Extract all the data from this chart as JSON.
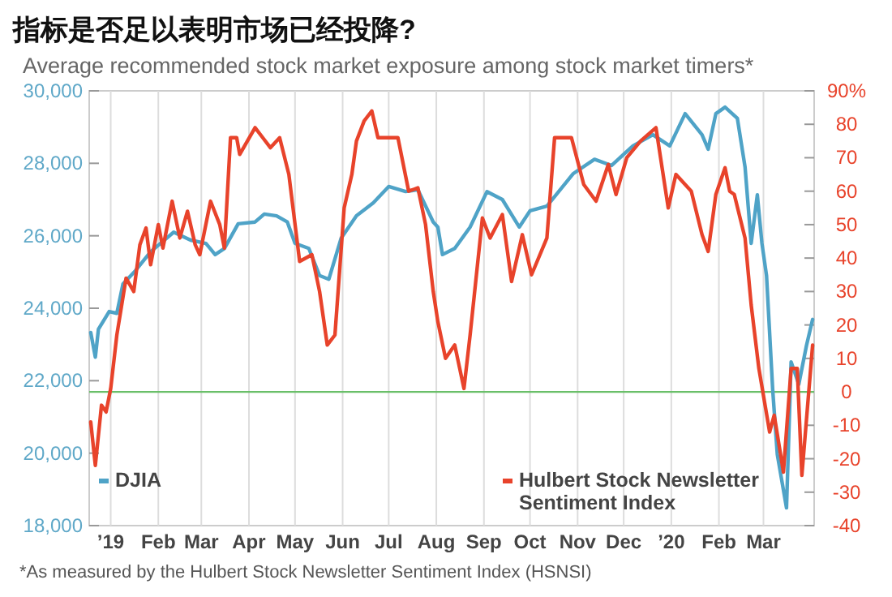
{
  "chart_data": {
    "type": "line",
    "title": "指标是否足以表明市场已经投降?",
    "subtitle": "Average recommended stock market exposure among stock market timers*",
    "annotations": [
      "*As measured by the Hulbert Stock Newsletter Sentiment Index (HSNSI)"
    ],
    "xlim": [
      "2019-01-01",
      "2020-04-17"
    ],
    "xticks": [
      {
        "value": "2019-01-15",
        "label": "’19"
      },
      {
        "value": "2019-02-15",
        "label": "Feb"
      },
      {
        "value": "2019-03-15",
        "label": "Mar"
      },
      {
        "value": "2019-04-15",
        "label": "Apr"
      },
      {
        "value": "2019-05-15",
        "label": "May"
      },
      {
        "value": "2019-06-15",
        "label": "Jun"
      },
      {
        "value": "2019-07-15",
        "label": "Jul"
      },
      {
        "value": "2019-08-15",
        "label": "Aug"
      },
      {
        "value": "2019-09-15",
        "label": "Sep"
      },
      {
        "value": "2019-10-15",
        "label": "Oct"
      },
      {
        "value": "2019-11-15",
        "label": "Nov"
      },
      {
        "value": "2019-12-15",
        "label": "Dec"
      },
      {
        "value": "2020-01-15",
        "label": "’20"
      },
      {
        "value": "2020-02-15",
        "label": "Feb"
      },
      {
        "value": "2020-03-15",
        "label": "Mar"
      }
    ],
    "ylim": [
      18000,
      30000
    ],
    "yticks": [
      {
        "value": 18000,
        "label": "18,000"
      },
      {
        "value": 20000,
        "label": "20,000"
      },
      {
        "value": 22000,
        "label": "22,000"
      },
      {
        "value": 24000,
        "label": "24,000"
      },
      {
        "value": 26000,
        "label": "26,000"
      },
      {
        "value": 28000,
        "label": "28,000"
      },
      {
        "value": 30000,
        "label": "30,000"
      }
    ],
    "y2lim": [
      -40,
      90
    ],
    "y2ticks": [
      -40,
      -30,
      -20,
      -10,
      0,
      10,
      20,
      30,
      40,
      50,
      60,
      70,
      80,
      {
        "value": 90,
        "label": "90%"
      }
    ],
    "grid": "x",
    "legend": "bottom",
    "line_style": "solid",
    "ref_lines": [
      {
        "axis": "y2",
        "value": 0,
        "color": "#6abf69"
      }
    ],
    "series": [
      {
        "name": "DJIA",
        "color": "#4fa3c7",
        "x": [
          "2019-01-02",
          "2019-01-05",
          "2019-01-07",
          "2019-01-14",
          "2019-01-19",
          "2019-01-23",
          "2019-01-31",
          "2019-02-10",
          "2019-02-25",
          "2019-03-08",
          "2019-03-18",
          "2019-03-24",
          "2019-03-30",
          "2019-04-08",
          "2019-04-19",
          "2019-04-25",
          "2019-05-03",
          "2019-05-10",
          "2019-05-15",
          "2019-05-24",
          "2019-05-31",
          "2019-06-06",
          "2019-06-14",
          "2019-06-24",
          "2019-07-05",
          "2019-07-15",
          "2019-07-26",
          "2019-08-03",
          "2019-08-13",
          "2019-08-16",
          "2019-08-19",
          "2019-08-27",
          "2019-09-06",
          "2019-09-17",
          "2019-09-27",
          "2019-10-08",
          "2019-10-15",
          "2019-10-26",
          "2019-11-01",
          "2019-11-12",
          "2019-11-26",
          "2019-12-07",
          "2019-12-21",
          "2020-01-03",
          "2020-01-14",
          "2020-01-24",
          "2020-02-04",
          "2020-02-08",
          "2020-02-13",
          "2020-02-19",
          "2020-02-27",
          "2020-03-03",
          "2020-03-07",
          "2020-03-11",
          "2020-03-14",
          "2020-03-17",
          "2020-03-21",
          "2020-03-24",
          "2020-03-30",
          "2020-04-02",
          "2020-04-07",
          "2020-04-12",
          "2020-04-16"
        ],
        "values": [
          23330,
          22650,
          23420,
          23910,
          23860,
          24670,
          25030,
          25560,
          26100,
          25880,
          25790,
          25480,
          25650,
          26330,
          26380,
          26600,
          26550,
          26380,
          25790,
          25650,
          24900,
          24800,
          25930,
          26550,
          26910,
          27360,
          27220,
          27270,
          26380,
          26240,
          25480,
          25650,
          26240,
          27220,
          27000,
          26240,
          26690,
          26820,
          27130,
          27710,
          28110,
          27940,
          28480,
          28790,
          28480,
          29370,
          28790,
          28390,
          29370,
          29550,
          29240,
          27900,
          25790,
          27130,
          25790,
          24900,
          21760,
          19970,
          18490,
          22520,
          21900,
          22970,
          23690
        ]
      },
      {
        "name": "Hulbert Stock Newsletter Sentiment Index",
        "color": "#e8432b",
        "axis": "y2",
        "x": [
          "2019-01-02",
          "2019-01-05",
          "2019-01-09",
          "2019-01-12",
          "2019-01-15",
          "2019-01-19",
          "2019-01-25",
          "2019-01-30",
          "2019-02-03",
          "2019-02-07",
          "2019-02-10",
          "2019-02-15",
          "2019-02-18",
          "2019-02-24",
          "2019-03-01",
          "2019-03-06",
          "2019-03-11",
          "2019-03-14",
          "2019-03-21",
          "2019-03-27",
          "2019-03-30",
          "2019-04-03",
          "2019-04-07",
          "2019-04-09",
          "2019-04-19",
          "2019-04-24",
          "2019-04-29",
          "2019-05-05",
          "2019-05-11",
          "2019-05-18",
          "2019-05-26",
          "2019-05-31",
          "2019-06-05",
          "2019-06-10",
          "2019-06-16",
          "2019-06-21",
          "2019-06-24",
          "2019-06-29",
          "2019-07-04",
          "2019-07-08",
          "2019-07-13",
          "2019-07-21",
          "2019-07-28",
          "2019-08-03",
          "2019-08-08",
          "2019-08-13",
          "2019-08-16",
          "2019-08-21",
          "2019-08-27",
          "2019-09-02",
          "2019-09-06",
          "2019-09-14",
          "2019-09-19",
          "2019-09-27",
          "2019-10-03",
          "2019-10-10",
          "2019-10-16",
          "2019-10-26",
          "2019-10-31",
          "2019-11-11",
          "2019-11-19",
          "2019-11-27",
          "2019-12-05",
          "2019-12-10",
          "2019-12-17",
          "2019-12-26",
          "2020-01-05",
          "2020-01-13",
          "2020-01-18",
          "2020-01-28",
          "2020-02-04",
          "2020-02-08",
          "2020-02-13",
          "2020-02-19",
          "2020-02-22",
          "2020-02-25",
          "2020-03-03",
          "2020-03-07",
          "2020-03-12",
          "2020-03-19",
          "2020-03-22",
          "2020-03-28",
          "2020-04-02",
          "2020-04-06",
          "2020-04-09",
          "2020-04-16"
        ],
        "values": [
          -9,
          -22,
          -4,
          -6,
          1,
          17,
          34,
          30,
          44,
          49,
          38,
          50,
          43,
          57,
          46,
          54,
          44,
          41,
          57,
          50,
          43,
          76,
          76,
          71,
          79,
          76,
          73,
          76,
          65,
          39,
          41,
          30,
          14,
          17,
          55,
          65,
          75,
          81,
          84,
          76,
          76,
          76,
          60,
          61,
          50,
          30,
          21,
          10,
          14,
          1,
          17,
          52,
          46,
          53,
          33,
          47,
          35,
          46,
          76,
          76,
          62,
          57,
          68,
          59,
          70,
          75,
          79,
          55,
          65,
          60,
          47,
          42,
          59,
          67,
          60,
          59,
          46,
          26,
          7,
          -12,
          -7,
          -24,
          7,
          7,
          -25,
          14
        ]
      }
    ]
  }
}
